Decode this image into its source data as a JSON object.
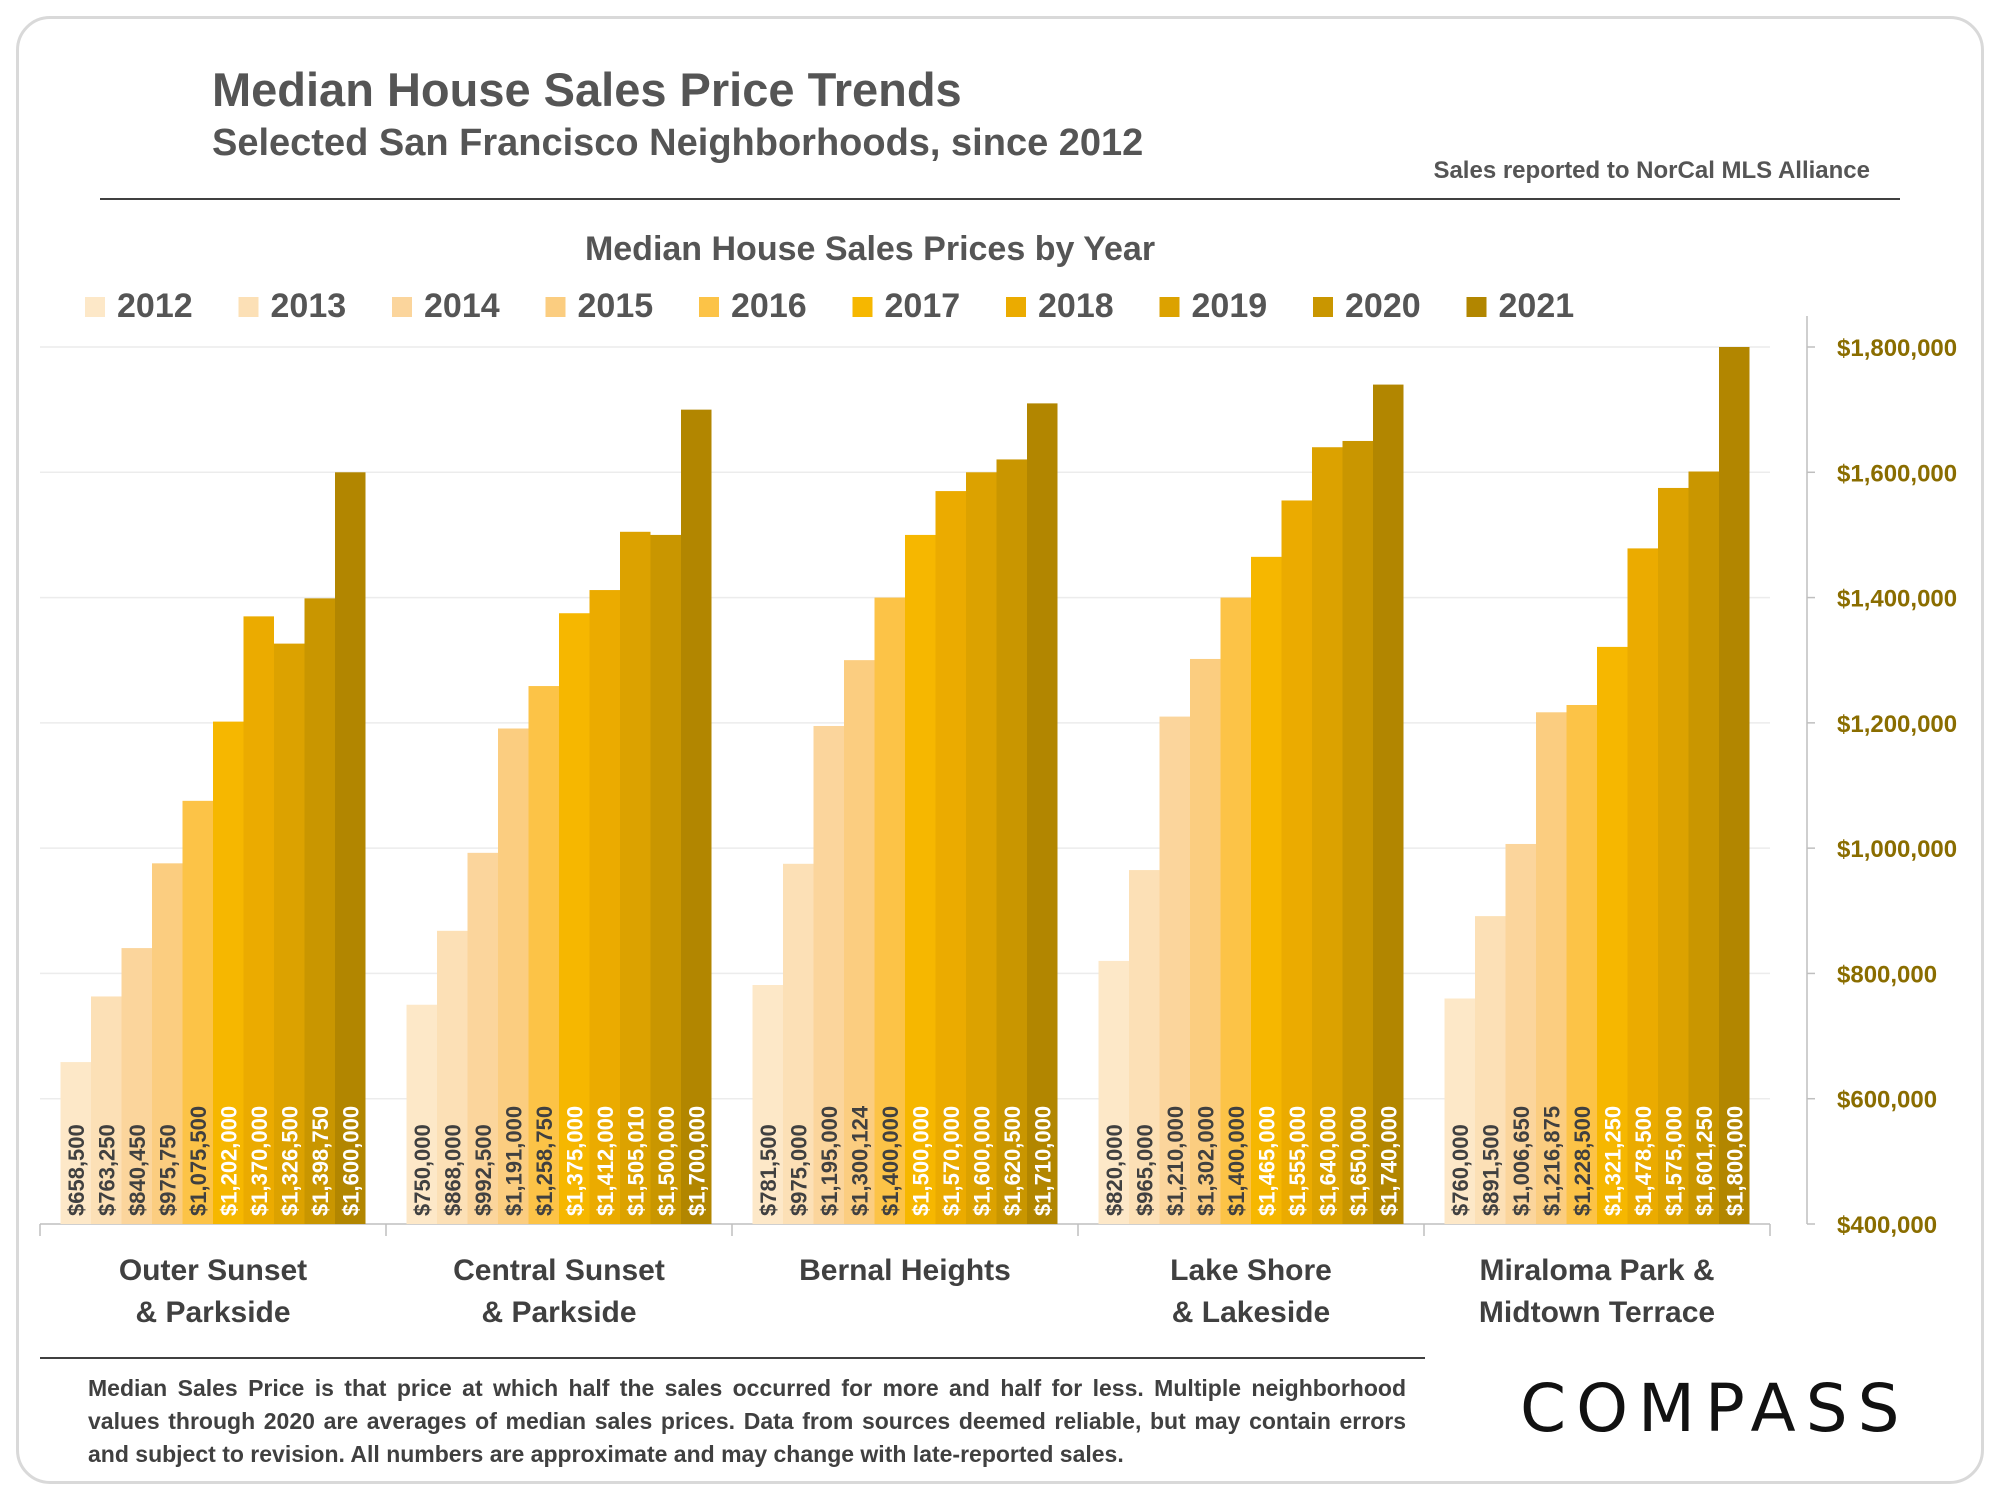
{
  "header": {
    "title": "Median House Sales Price Trends",
    "subtitle": "Selected San Francisco Neighborhoods, since 2012",
    "source": "Sales reported to NorCal MLS Alliance"
  },
  "footnote": "Median Sales Price is that price at which half the sales occurred for more and half for less. Multiple neighborhood values through 2020 are averages of median sales prices. Data from sources deemed reliable, but may contain errors and subject to revision.  All numbers are approximate and may change with late-reported sales.",
  "logo": "COMPASS",
  "chart_data": {
    "type": "bar",
    "title": "Median House Sales Prices by Year",
    "categories": [
      [
        "Outer Sunset",
        "& Parkside"
      ],
      [
        "Central Sunset",
        "& Parkside"
      ],
      [
        "Bernal Heights"
      ],
      [
        "Lake Shore",
        "& Lakeside"
      ],
      [
        "Miraloma Park &",
        "Midtown Terrace"
      ]
    ],
    "ylim": [
      400000,
      1800000
    ],
    "yticks": [
      "$400,000",
      "$600,000",
      "$800,000",
      "$1,000,000",
      "$1,200,000",
      "$1,400,000",
      "$1,600,000",
      "$1,800,000"
    ],
    "ytick_values": [
      400000,
      600000,
      800000,
      1000000,
      1200000,
      1400000,
      1600000,
      1800000
    ],
    "y_axis_side": "right",
    "legend_position": "top",
    "series": [
      {
        "name": "2012",
        "color": "#fde8c8",
        "values": [
          658500,
          750000,
          781500,
          820000,
          760000
        ],
        "labels": [
          "$658,500",
          "$750,000",
          "$781,500",
          "$820,000",
          "$760,000"
        ]
      },
      {
        "name": "2013",
        "color": "#fce0b6",
        "values": [
          763250,
          868000,
          975000,
          965000,
          891500
        ],
        "labels": [
          "$763,250",
          "$868,000",
          "$975,000",
          "$965,000",
          "$891,500"
        ]
      },
      {
        "name": "2014",
        "color": "#fbd59c",
        "values": [
          840450,
          992500,
          1195000,
          1210000,
          1006650
        ],
        "labels": [
          "$840,450",
          "$992,500",
          "$1,195,000",
          "$1,210,000",
          "$1,006,650"
        ]
      },
      {
        "name": "2015",
        "color": "#fbcd80",
        "values": [
          975750,
          1191000,
          1300124,
          1302000,
          1216875
        ],
        "labels": [
          "$975,750",
          "$1,191,000",
          "$1,300,124",
          "$1,302,000",
          "$1,216,875"
        ]
      },
      {
        "name": "2016",
        "color": "#fcc347",
        "values": [
          1075500,
          1258750,
          1400000,
          1400000,
          1228500
        ],
        "labels": [
          "$1,075,500",
          "$1,258,750",
          "$1,400,000",
          "$1,400,000",
          "$1,228,500"
        ]
      },
      {
        "name": "2017",
        "color": "#f6b700",
        "values": [
          1202000,
          1375000,
          1500000,
          1465000,
          1321250
        ],
        "labels": [
          "$1,202,000",
          "$1,375,000",
          "$1,500,000",
          "$1,465,000",
          "$1,321,250"
        ]
      },
      {
        "name": "2018",
        "color": "#ebab00",
        "values": [
          1370000,
          1412000,
          1570000,
          1555000,
          1478500
        ],
        "labels": [
          "$1,370,000",
          "$1,412,000",
          "$1,570,000",
          "$1,555,000",
          "$1,478,500"
        ]
      },
      {
        "name": "2019",
        "color": "#dca200",
        "values": [
          1326500,
          1505010,
          1600000,
          1640000,
          1575000
        ],
        "labels": [
          "$1,326,500",
          "$1,505,010",
          "$1,600,000",
          "$1,640,000",
          "$1,575,000"
        ]
      },
      {
        "name": "2020",
        "color": "#c99600",
        "values": [
          1398750,
          1500000,
          1620500,
          1650000,
          1601250
        ],
        "labels": [
          "$1,398,750",
          "$1,500,000",
          "$1,620,500",
          "$1,650,000",
          "$1,601,250"
        ]
      },
      {
        "name": "2021",
        "color": "#b28600",
        "values": [
          1600000,
          1700000,
          1710000,
          1740000,
          1800000
        ],
        "labels": [
          "$1,600,000",
          "$1,700,000",
          "$1,710,000",
          "$1,740,000",
          "$1,800,000"
        ]
      }
    ]
  }
}
